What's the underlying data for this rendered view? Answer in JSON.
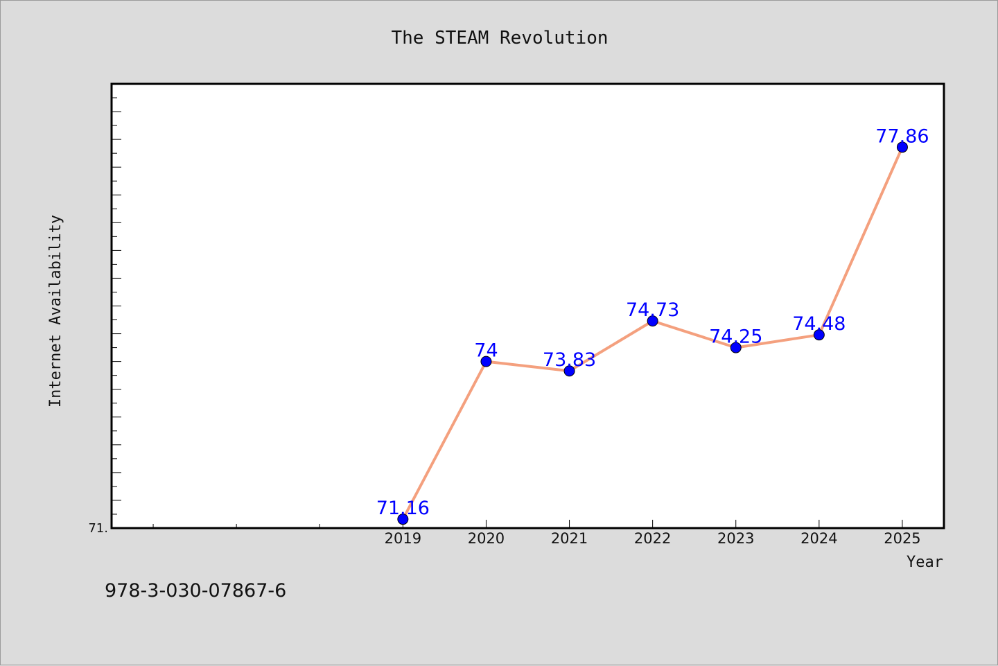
{
  "footer_text": "978-3-030-07867-6",
  "colors": {
    "background": "#dcdcdc",
    "plot_background": "#ffffff",
    "line": "#f4a07e",
    "marker": "#0000ff",
    "data_label": "#0000ff"
  },
  "chart_data": {
    "type": "line",
    "title": "The STEAM Revolution",
    "xlabel": "Year",
    "ylabel": "Internet Availability",
    "x": [
      2019,
      2020,
      2021,
      2022,
      2023,
      2024,
      2025
    ],
    "x_tick_labels": [
      "2019",
      "2020",
      "2021",
      "2022",
      "2023",
      "2024",
      "2025"
    ],
    "xlim": [
      2015.5,
      2025.5
    ],
    "ylim": [
      71.0,
      79.0
    ],
    "y_tick_label": "71.",
    "grid": false,
    "series": [
      {
        "values": [
          71.16,
          74.0,
          73.83,
          74.73,
          74.25,
          74.48,
          77.86
        ],
        "labels": [
          "71.16",
          "74",
          "73.83",
          "74.73",
          "74.25",
          "74.48",
          "77.86"
        ]
      }
    ]
  }
}
